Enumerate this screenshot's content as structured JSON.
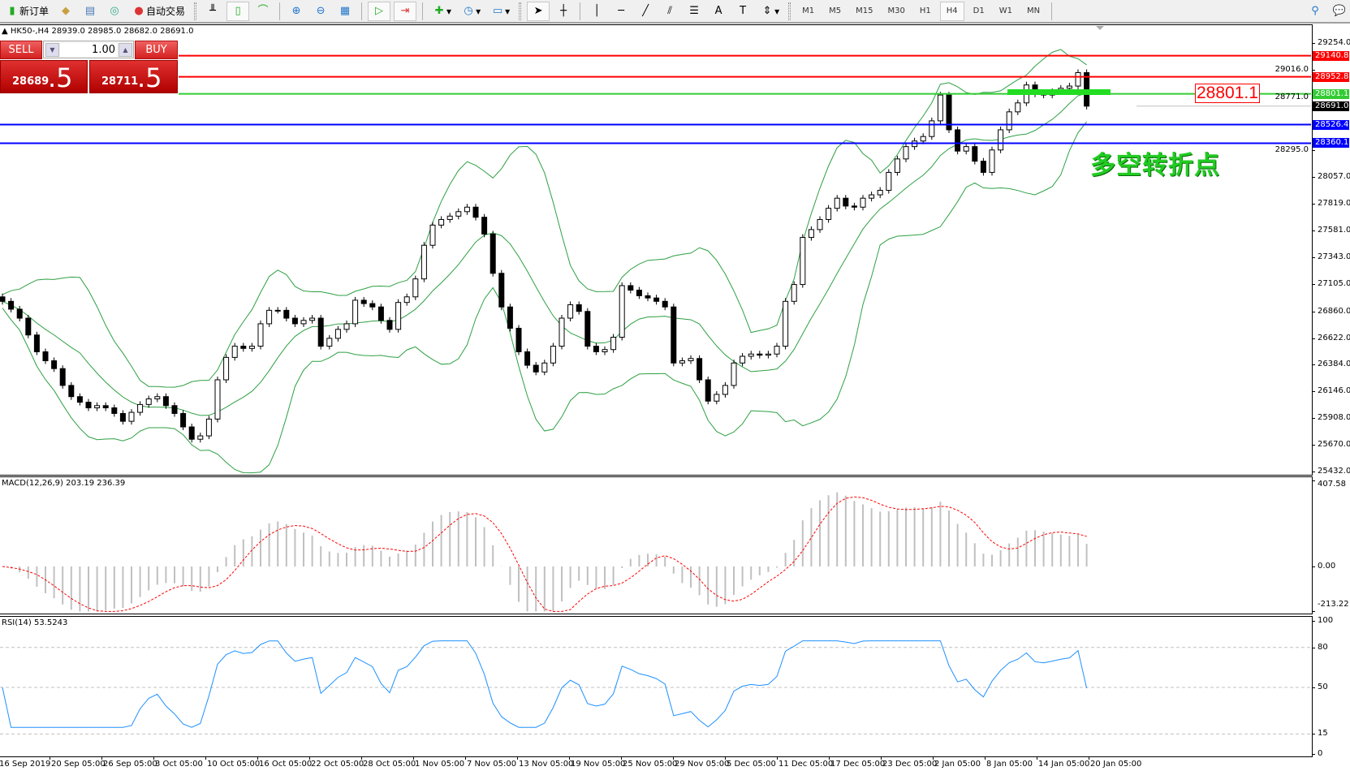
{
  "toolbar": {
    "new_order": "新订单",
    "auto_trading": "自动交易",
    "timeframes": [
      "M1",
      "M5",
      "M15",
      "M30",
      "H1",
      "H4",
      "D1",
      "W1",
      "MN"
    ],
    "active_timeframe": "H4"
  },
  "chart": {
    "header": "▲ HK50-,H4  28939.0 28985.0 28682.0 28691.0",
    "symbol": "HK50-",
    "period": "H4",
    "bid": 28691.0,
    "price_axis": [
      "29254.0",
      "29016.0",
      "28771.0",
      "28295.0",
      "28057.0",
      "27819.0",
      "27581.0",
      "27343.0",
      "27105.0",
      "26860.0",
      "26622.0",
      "26384.0",
      "26146.0",
      "25908.0",
      "25670.0",
      "25432.0"
    ],
    "time_axis": [
      "16 Sep 2019",
      "20 Sep 05:00",
      "26 Sep 05:00",
      "3 Oct 05:00",
      "10 Oct 05:00",
      "16 Oct 05:00",
      "22 Oct 05:00",
      "28 Oct 05:00",
      "1 Nov 05:00",
      "7 Nov 05:00",
      "13 Nov 05:00",
      "19 Nov 05:00",
      "25 Nov 05:00",
      "29 Nov 05:00",
      "5 Dec 05:00",
      "11 Dec 05:00",
      "17 Dec 05:00",
      "23 Dec 05:00",
      "2 Jan 05:00",
      "8 Jan 05:00",
      "14 Jan 05:00",
      "20 Jan 05:00"
    ],
    "horizontal_lines": [
      {
        "price": "29140.8",
        "color": "#ff0000"
      },
      {
        "price": "28952.8",
        "color": "#ff0000"
      },
      {
        "price": "28801.1",
        "color": "#33cc33"
      },
      {
        "price": "28691.0",
        "color": "#000000"
      },
      {
        "price": "28526.4",
        "color": "#0000ff"
      },
      {
        "price": "28360.1",
        "color": "#0000ff"
      }
    ],
    "annotation_price": "28801.1",
    "annotation_text": "多空转折点",
    "closes": [
      26950,
      26880,
      26800,
      26650,
      26500,
      26420,
      26350,
      26200,
      26100,
      26050,
      26000,
      26020,
      26000,
      25950,
      25880,
      25960,
      26030,
      26080,
      26100,
      26020,
      25950,
      25830,
      25720,
      25750,
      25900,
      26250,
      26450,
      26550,
      26530,
      26550,
      26750,
      26870,
      26870,
      26800,
      26750,
      26780,
      26800,
      26550,
      26620,
      26700,
      26750,
      26960,
      26930,
      26900,
      26780,
      26700,
      26940,
      26990,
      27150,
      27450,
      27630,
      27680,
      27710,
      27750,
      27790,
      27700,
      27550,
      27200,
      26900,
      26710,
      26500,
      26380,
      26320,
      26400,
      26550,
      26800,
      26920,
      26860,
      26550,
      26500,
      26520,
      26630,
      27090,
      27050,
      27000,
      26980,
      26950,
      26900,
      26400,
      26420,
      26440,
      26250,
      26060,
      26120,
      26200,
      26400,
      26460,
      26480,
      26470,
      26480,
      26550,
      26950,
      27100,
      27520,
      27590,
      27680,
      27780,
      27870,
      27800,
      27790,
      27870,
      27900,
      27940,
      28100,
      28220,
      28330,
      28380,
      28420,
      28560,
      28790,
      28480,
      28290,
      28330,
      28200,
      28100,
      28300,
      28480,
      28640,
      28720,
      28880,
      28800,
      28790,
      28820,
      28850,
      28870,
      28990,
      28691
    ]
  },
  "trade_panel": {
    "sell_label": "SELL",
    "buy_label": "BUY",
    "lot": "1.00",
    "sell_price_main": "28689",
    "sell_price_frac": ".5",
    "buy_price_main": "28711",
    "buy_price_frac": ".5"
  },
  "macd": {
    "label": "MACD(12,26,9) 203.19 236.39",
    "axis": [
      "407.58",
      "0.00",
      "-213.22"
    ]
  },
  "rsi": {
    "label": "RSI(14) 53.5243",
    "axis": [
      "100",
      "80",
      "50",
      "15",
      "0"
    ]
  },
  "colors": {
    "bands": "#2ea043",
    "signal": "#ff0000",
    "rsi": "#1e90ff",
    "histogram": "#c0c0c0"
  }
}
